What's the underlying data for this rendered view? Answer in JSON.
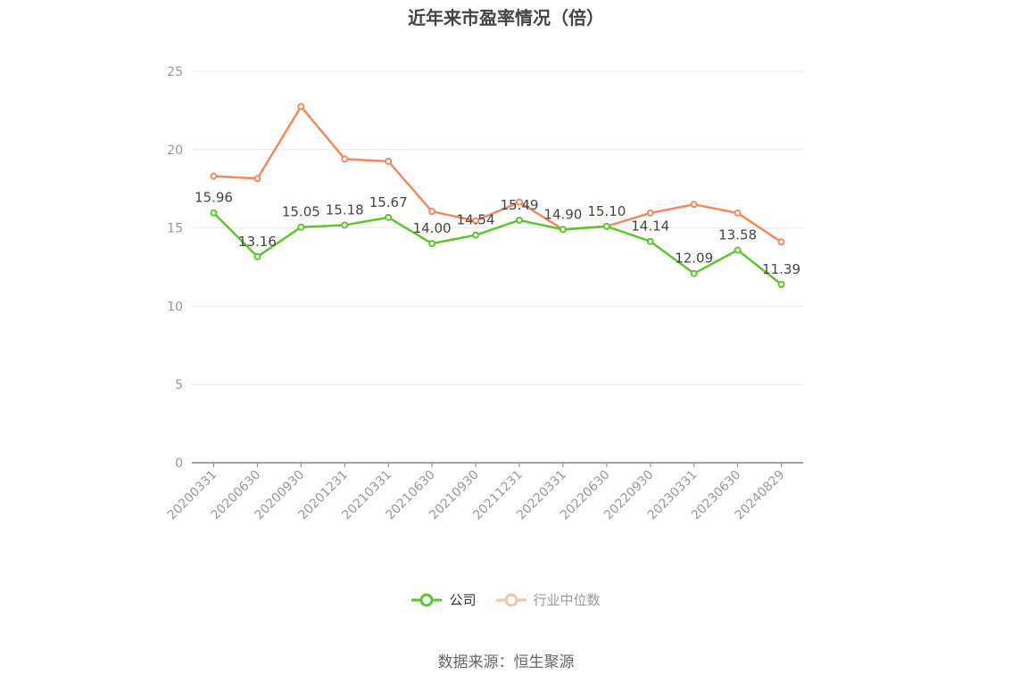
{
  "chart_data": {
    "type": "line",
    "title": "近年来市盈率情况（倍）",
    "categories": [
      "20200331",
      "20200630",
      "20200930",
      "20201231",
      "20210331",
      "20210630",
      "20210930",
      "20211231",
      "20220331",
      "20220630",
      "20220930",
      "20230331",
      "20230630",
      "20240829"
    ],
    "series": [
      {
        "name": "公司",
        "color": "#5cc72c",
        "values": [
          15.96,
          13.16,
          15.05,
          15.18,
          15.67,
          14.0,
          14.54,
          15.49,
          14.9,
          15.1,
          14.14,
          12.09,
          13.58,
          11.39
        ],
        "labels": [
          "15.96",
          "13.16",
          "15.05",
          "15.18",
          "15.67",
          "14.00",
          "14.54",
          "15.49",
          "14.90",
          "15.10",
          "14.14",
          "12.09",
          "13.58",
          "11.39"
        ]
      },
      {
        "name": "行业中位数",
        "color": "#f08a5d",
        "values": [
          18.3,
          18.15,
          22.75,
          19.4,
          19.25,
          16.05,
          15.45,
          16.65,
          14.9,
          15.1,
          15.95,
          16.5,
          15.95,
          14.1
        ]
      }
    ],
    "y_ticks": [
      "0",
      "5",
      "10",
      "15",
      "20",
      "25"
    ],
    "ylim": [
      0,
      25
    ],
    "grid": true,
    "legend_position": "bottom-center",
    "source": "数据来源：恒生聚源"
  }
}
